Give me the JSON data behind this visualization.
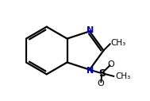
{
  "bg_color": "#ffffff",
  "line_color": "#000000",
  "text_color": "#000000",
  "N_color": "#0000cc",
  "S_color": "#000000",
  "O_color": "#000000",
  "line_width": 1.6,
  "dpi": 100,
  "figsize": [
    1.89,
    1.27
  ],
  "xlim": [
    0.0,
    1.0
  ],
  "ylim": [
    0.0,
    1.0
  ]
}
